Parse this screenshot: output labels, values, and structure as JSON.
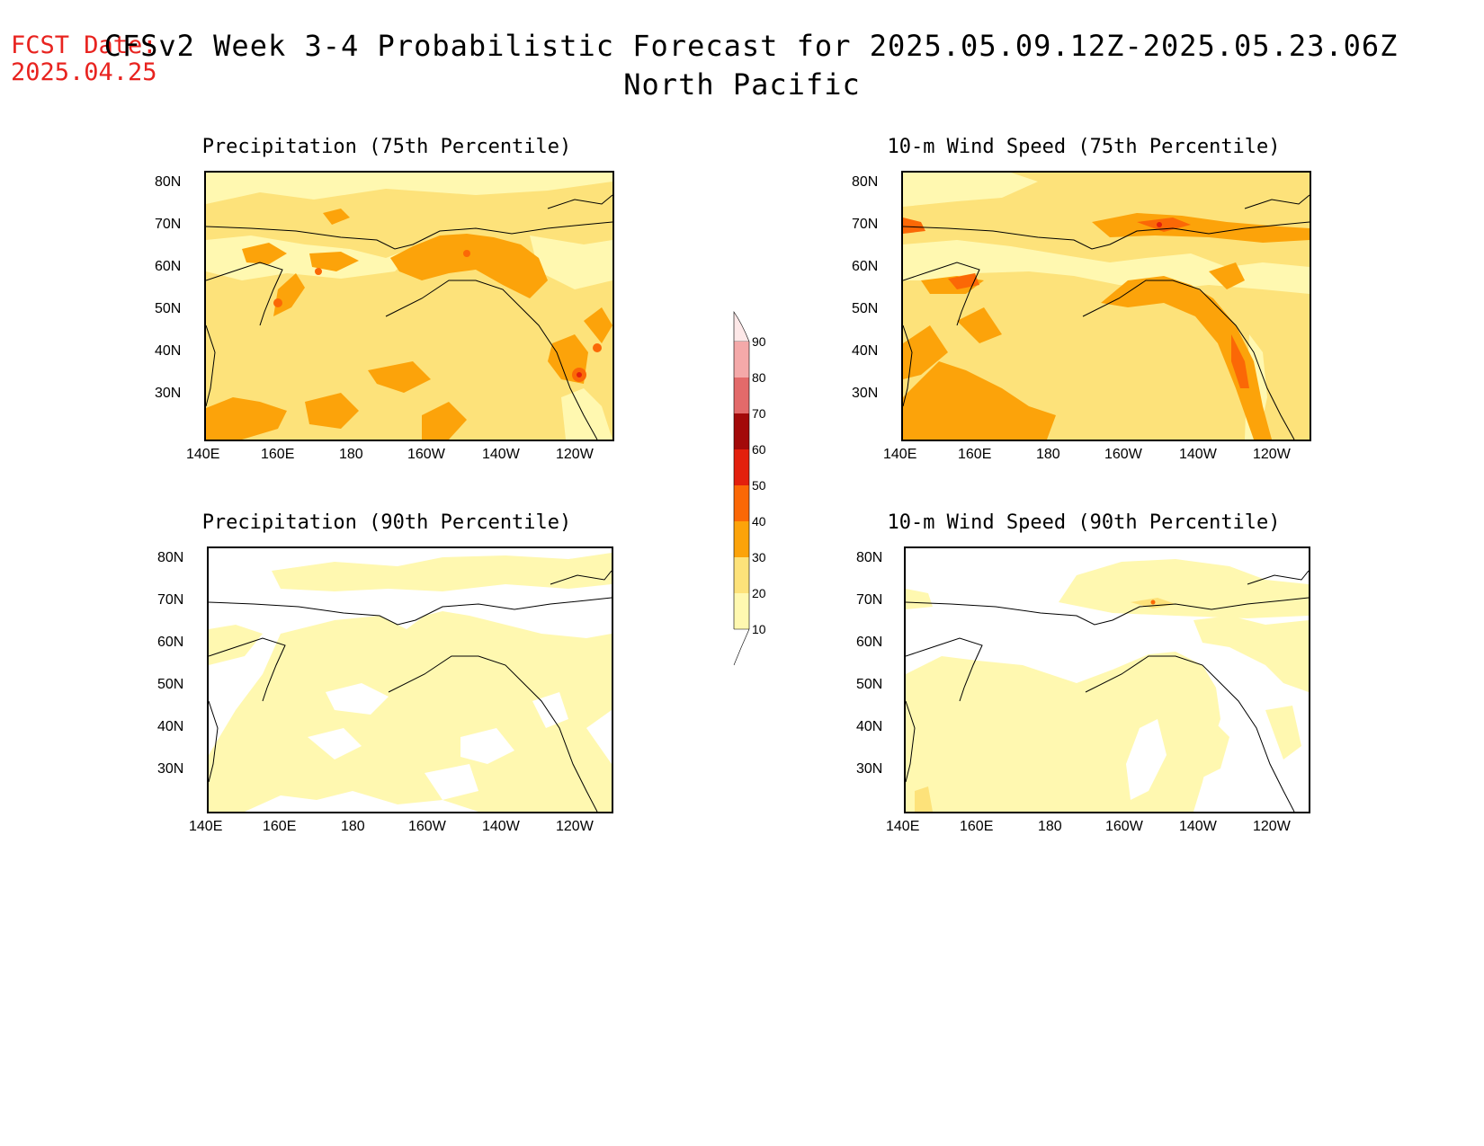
{
  "header": {
    "fcst_label": "FCST Date:",
    "fcst_date": "2025.04.25",
    "title": "CFSv2 Week 3-4 Probabilistic Forecast for 2025.05.09.12Z-2025.05.23.06Z",
    "region": "North Pacific"
  },
  "axes": {
    "lat_labels": [
      "80N",
      "70N",
      "60N",
      "50N",
      "40N",
      "30N"
    ],
    "lon_labels": [
      "140E",
      "160E",
      "180",
      "160W",
      "140W",
      "120W"
    ]
  },
  "panels": [
    {
      "title": "Precipitation (75th Percentile)",
      "field": "precip75"
    },
    {
      "title": "10-m Wind Speed (75th Percentile)",
      "field": "wind75"
    },
    {
      "title": "Precipitation (90th Percentile)",
      "field": "precip90"
    },
    {
      "title": "10-m Wind Speed (90th Percentile)",
      "field": "wind90"
    }
  ],
  "colorbar": {
    "labels": [
      "90",
      "80",
      "70",
      "60",
      "50",
      "40",
      "30",
      "20",
      "10"
    ],
    "colors": {
      "10-20": "#fff8b0",
      "20-30": "#fde27a",
      "30-40": "#fca30a",
      "40-50": "#fb6806",
      "50-60": "#e3200d",
      "60-70": "#a30a0a",
      "70-80": "#e36a6a",
      "80-90": "#f4a9a9",
      "90-100": "#fde8e8"
    }
  }
}
